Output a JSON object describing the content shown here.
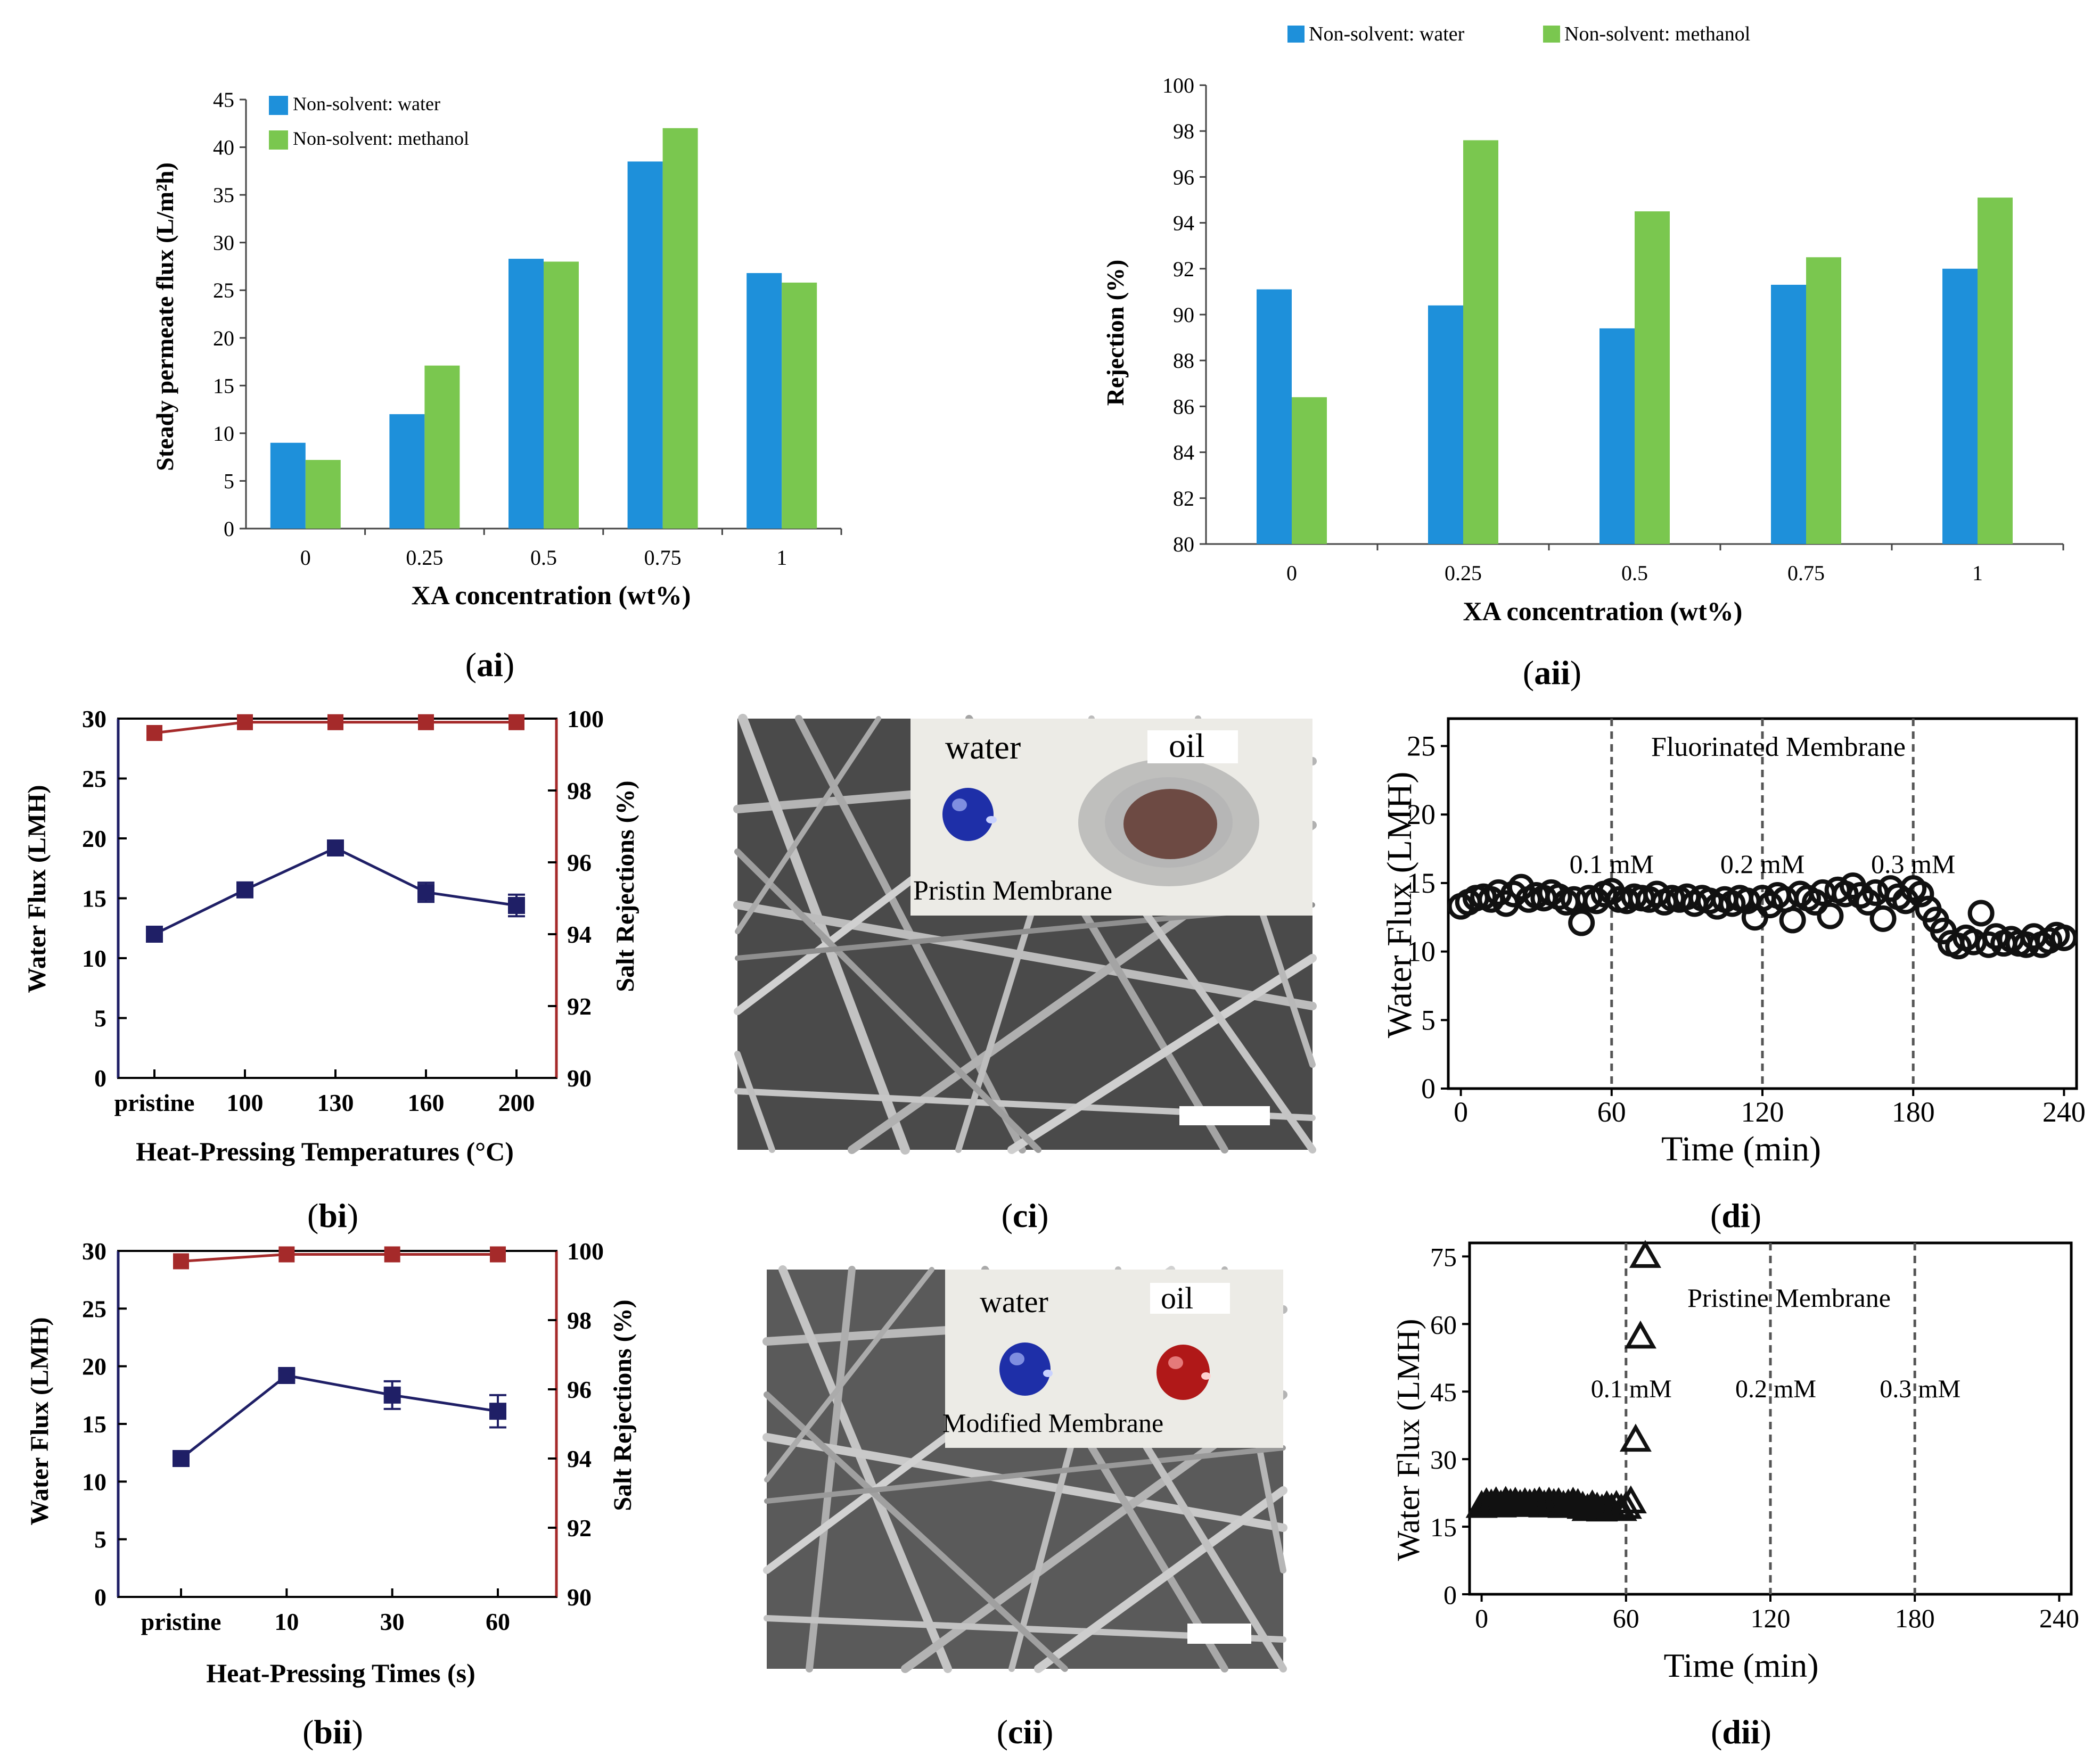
{
  "panel_labels": {
    "ai": "ai",
    "aii": "aii",
    "bi": "bi",
    "bii": "bii",
    "ci": "ci",
    "cii": "cii",
    "di": "di",
    "dii": "dii"
  },
  "colors": {
    "water_bar": "#1E90DA",
    "methanol_bar": "#7AC74F",
    "flux_line": "#1F1F66",
    "rejection_line": "#A52A2A",
    "marker_dark": "#111111",
    "dashed": "#555555"
  },
  "images": {
    "ci": {
      "water_label": "water",
      "oil_label": "oil",
      "caption": "Pristin Membrane"
    },
    "cii": {
      "water_label": "water",
      "oil_label": "oil",
      "caption": "Modified Membrane"
    }
  },
  "chart_data": [
    {
      "id": "ai",
      "type": "bar",
      "title": "",
      "categories": [
        "0",
        "0.25",
        "0.5",
        "0.75",
        "1"
      ],
      "series": [
        {
          "name": "Non-solvent: water",
          "values": [
            9.0,
            12.0,
            28.3,
            38.5,
            26.8
          ]
        },
        {
          "name": "Non-solvent: methanol",
          "values": [
            7.2,
            17.1,
            28.0,
            42.0,
            25.8
          ]
        }
      ],
      "xlabel": "XA concentration (wt%)",
      "ylabel": "Steady permeate flux (L/m²h)",
      "ylim": [
        0,
        45
      ],
      "yticks": [
        "0",
        "5",
        "10",
        "15",
        "20",
        "25",
        "30",
        "35",
        "40",
        "45"
      ],
      "legend_position": "top-left"
    },
    {
      "id": "aii",
      "type": "bar",
      "title": "",
      "categories": [
        "0",
        "0.25",
        "0.5",
        "0.75",
        "1"
      ],
      "series": [
        {
          "name": "Non-solvent: water",
          "values": [
            91.1,
            90.4,
            89.4,
            91.3,
            92.0
          ]
        },
        {
          "name": "Non-solvent: methanol",
          "values": [
            86.4,
            97.6,
            94.5,
            92.5,
            95.1
          ]
        }
      ],
      "xlabel": "XA concentration (wt%)",
      "ylabel": "Rejection (%)",
      "ylim": [
        80,
        100
      ],
      "yticks": [
        "80",
        "82",
        "84",
        "86",
        "88",
        "90",
        "92",
        "94",
        "96",
        "98",
        "100"
      ],
      "legend_position": "top"
    },
    {
      "id": "bi",
      "type": "line",
      "categories": [
        "pristine",
        "100",
        "130",
        "160",
        "200"
      ],
      "series": [
        {
          "name": "Water Flux",
          "axis": "left",
          "values": [
            12.0,
            15.7,
            19.2,
            15.5,
            14.4
          ],
          "errors": [
            0.3,
            0.6,
            0.4,
            0.8,
            0.9
          ]
        },
        {
          "name": "Salt Rejections",
          "axis": "right",
          "values": [
            99.6,
            99.9,
            99.9,
            99.9,
            99.9
          ]
        }
      ],
      "xlabel": "Heat-Pressing Temperatures (°C)",
      "ylabel": "Water Flux (LMH)",
      "y2label": "Salt Rejections (%)",
      "ylim": [
        0,
        30
      ],
      "y2lim": [
        90,
        100
      ],
      "yticks": [
        "0",
        "5",
        "10",
        "15",
        "20",
        "25",
        "30"
      ],
      "y2ticks": [
        "90",
        "92",
        "94",
        "96",
        "98",
        "100"
      ]
    },
    {
      "id": "bii",
      "type": "line",
      "categories": [
        "pristine",
        "10",
        "30",
        "60"
      ],
      "series": [
        {
          "name": "Water Flux",
          "axis": "left",
          "values": [
            12.0,
            19.2,
            17.5,
            16.1
          ],
          "errors": [
            0.3,
            0.4,
            1.2,
            1.4
          ]
        },
        {
          "name": "Salt Rejections",
          "axis": "right",
          "values": [
            99.7,
            99.9,
            99.9,
            99.9
          ]
        }
      ],
      "xlabel": "Heat-Pressing Times (s)",
      "ylabel": "Water Flux (LMH)",
      "y2label": "Salt Rejections (%)",
      "ylim": [
        0,
        30
      ],
      "y2lim": [
        90,
        100
      ],
      "yticks": [
        "0",
        "5",
        "10",
        "15",
        "20",
        "25",
        "30"
      ],
      "y2ticks": [
        "90",
        "92",
        "94",
        "96",
        "98",
        "100"
      ]
    },
    {
      "id": "di",
      "type": "scatter",
      "title": "Fluorinated Membrane",
      "xlabel": "Time (min)",
      "ylabel": "Water Flux (LMH)",
      "xlim": [
        -5,
        245
      ],
      "ylim": [
        0,
        27
      ],
      "xticks": [
        "0",
        "60",
        "120",
        "180",
        "240"
      ],
      "yticks": [
        "0",
        "5",
        "10",
        "15",
        "20",
        "25"
      ],
      "vlines": [
        60,
        120,
        180
      ],
      "annotations": [
        "0.1 mM",
        "0.2 mM",
        "0.3 mM"
      ],
      "x": [
        0,
        3,
        6,
        9,
        12,
        15,
        18,
        21,
        24,
        27,
        30,
        33,
        36,
        39,
        42,
        45,
        48,
        51,
        54,
        57,
        60,
        63,
        66,
        69,
        72,
        75,
        78,
        81,
        84,
        87,
        90,
        93,
        96,
        99,
        102,
        105,
        108,
        111,
        114,
        117,
        120,
        123,
        126,
        129,
        132,
        135,
        138,
        141,
        144,
        147,
        150,
        153,
        156,
        159,
        162,
        165,
        168,
        171,
        174,
        177,
        180,
        183,
        186,
        189,
        192,
        195,
        198,
        201,
        204,
        207,
        210,
        213,
        216,
        219,
        222,
        225,
        228,
        231,
        234,
        237,
        240
      ],
      "y": [
        13.3,
        13.6,
        13.9,
        14.0,
        13.8,
        14.3,
        13.5,
        14.2,
        14.7,
        13.8,
        14.1,
        13.9,
        14.3,
        14.0,
        13.6,
        13.8,
        12.1,
        13.9,
        13.7,
        14.2,
        14.4,
        13.8,
        13.7,
        14.0,
        13.9,
        13.8,
        14.2,
        13.6,
        13.9,
        13.8,
        14.0,
        13.5,
        13.9,
        13.7,
        13.3,
        13.8,
        13.5,
        13.9,
        13.7,
        12.5,
        13.9,
        13.4,
        14.1,
        13.8,
        12.3,
        14.2,
        13.9,
        13.6,
        14.3,
        12.6,
        14.5,
        14.2,
        14.8,
        14.1,
        13.6,
        14.3,
        12.4,
        14.6,
        14.0,
        13.7,
        14.6,
        14.2,
        13.1,
        12.3,
        11.5,
        10.6,
        10.4,
        11.0,
        10.7,
        12.8,
        10.5,
        11.1,
        10.6,
        10.9,
        10.6,
        10.5,
        11.1,
        10.5,
        10.8,
        11.2,
        11.0
      ]
    },
    {
      "id": "dii",
      "type": "scatter",
      "title": "Pristine Membrane",
      "xlabel": "Time (min)",
      "ylabel": "Water Flux (LMH)",
      "xlim": [
        -5,
        245
      ],
      "ylim": [
        0,
        78
      ],
      "xticks": [
        "0",
        "60",
        "120",
        "180",
        "240"
      ],
      "yticks": [
        "0",
        "15",
        "30",
        "45",
        "60",
        "75"
      ],
      "vlines": [
        60,
        120,
        180
      ],
      "annotations": [
        "0.1 mM",
        "0.2 mM",
        "0.3 mM"
      ],
      "x": [
        0,
        2,
        4,
        6,
        8,
        10,
        12,
        14,
        16,
        18,
        20,
        22,
        24,
        26,
        28,
        30,
        32,
        34,
        36,
        38,
        40,
        42,
        44,
        46,
        48,
        50,
        52,
        54,
        56,
        58,
        60,
        62,
        64,
        66,
        68
      ],
      "y": [
        19.5,
        20.1,
        19.8,
        20.3,
        19.6,
        20.4,
        19.9,
        20.2,
        19.7,
        20.1,
        19.8,
        20.0,
        20.3,
        19.6,
        20.2,
        19.9,
        20.1,
        19.5,
        19.8,
        20.2,
        19.9,
        19.3,
        18.8,
        19.6,
        19.1,
        18.7,
        19.4,
        18.9,
        19.5,
        18.8,
        19.3,
        20.5,
        34.2,
        57.1,
        75.0
      ]
    }
  ]
}
